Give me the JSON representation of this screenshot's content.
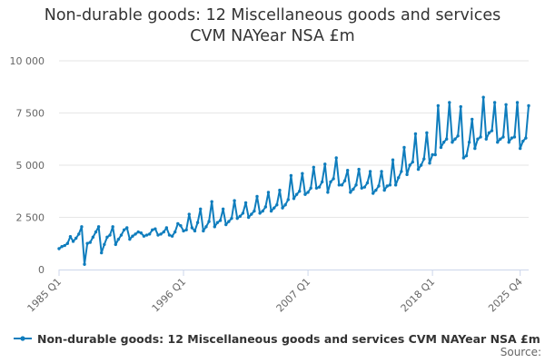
{
  "chart_data": {
    "type": "line",
    "title_line1": "Non-durable goods: 12 Miscellaneous goods and services",
    "title_line2": "CVM NAYear NSA £m",
    "xlabel": "",
    "ylabel": "",
    "ylim": [
      0,
      10000
    ],
    "yticks": [
      0,
      2500,
      5000,
      7500,
      10000
    ],
    "ytick_labels": [
      "0",
      "2 500",
      "5 000",
      "7 500",
      "10 000"
    ],
    "start_year": 1985,
    "xtick_labels": [
      "1985 Q1",
      "1996 Q1",
      "2007 Q1",
      "2018 Q1",
      "2025 Q4"
    ],
    "xtick_indices": [
      0,
      44,
      88,
      132,
      163
    ],
    "legend_position": "bottom",
    "series": [
      {
        "name": "Non-durable goods: 12 Miscellaneous goods and services CVM NAYear NSA £m",
        "color": "#0f7dbd",
        "values": [
          1000,
          1100,
          1150,
          1250,
          1580,
          1350,
          1500,
          1700,
          2050,
          250,
          1250,
          1300,
          1550,
          1800,
          2050,
          800,
          1200,
          1550,
          1650,
          2050,
          1200,
          1450,
          1650,
          1900,
          2000,
          1450,
          1600,
          1700,
          1800,
          1750,
          1600,
          1650,
          1700,
          1900,
          1950,
          1650,
          1700,
          1800,
          2000,
          1650,
          1600,
          1800,
          2200,
          2100,
          1850,
          1900,
          2650,
          2000,
          1850,
          2250,
          2900,
          1850,
          2050,
          2300,
          3250,
          2050,
          2250,
          2350,
          2900,
          2150,
          2300,
          2450,
          3300,
          2450,
          2550,
          2700,
          3200,
          2500,
          2650,
          2800,
          3500,
          2700,
          2800,
          3000,
          3700,
          2800,
          2950,
          3100,
          3800,
          2950,
          3100,
          3350,
          4500,
          3400,
          3600,
          3750,
          4600,
          3600,
          3700,
          3900,
          4900,
          3900,
          3950,
          4200,
          5050,
          3700,
          4200,
          4350,
          5350,
          4050,
          4050,
          4250,
          4750,
          3700,
          3850,
          4050,
          4800,
          3900,
          3950,
          4150,
          4700,
          3650,
          3800,
          4000,
          4700,
          3800,
          4000,
          4050,
          5250,
          4050,
          4400,
          4700,
          5850,
          4550,
          5000,
          5150,
          6500,
          4800,
          5000,
          5300,
          6550,
          5100,
          5500,
          5500,
          7850,
          5850,
          6100,
          6250,
          8000,
          6100,
          6250,
          6400,
          7800,
          5350,
          5450,
          6100,
          7200,
          5800,
          6250,
          6350,
          8250,
          6250,
          6550,
          6650,
          8000,
          6100,
          6250,
          6350,
          7900,
          6100,
          6300,
          6350,
          8000,
          5800,
          6150,
          6300,
          7850
        ]
      }
    ]
  },
  "source_label": "Source:"
}
